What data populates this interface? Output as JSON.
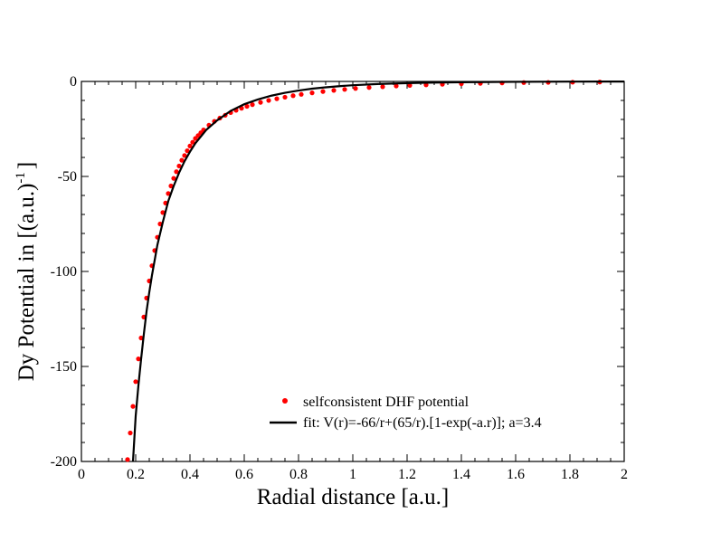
{
  "chart_data": {
    "type": "scatter+line",
    "xlabel": "Radial distance [a.u.]",
    "ylabel_main": "Dy Potential in [(a.u.)",
    "ylabel_sup": "-1",
    "ylabel_end": "]",
    "xlim": [
      0,
      2
    ],
    "ylim": [
      -200,
      0
    ],
    "x_ticks": [
      0,
      0.2,
      0.4,
      0.6,
      0.8,
      1,
      1.2,
      1.4,
      1.6,
      1.8,
      2
    ],
    "x_tick_labels": [
      "0",
      "0.2",
      "0.4",
      "0.6",
      "0.8",
      "1",
      "1.2",
      "1.4",
      "1.6",
      "1.8",
      "2"
    ],
    "y_ticks": [
      -200,
      -150,
      -100,
      -50,
      0
    ],
    "y_tick_labels": [
      "-200",
      "-150",
      "-100",
      "-50",
      "0"
    ],
    "grid": false,
    "legend_position": "bottom-right",
    "series": [
      {
        "name": "selfconsistent DHF potential",
        "kind": "scatter",
        "color": "#ff0000",
        "x": [
          0.17,
          0.18,
          0.19,
          0.2,
          0.21,
          0.22,
          0.23,
          0.24,
          0.25,
          0.26,
          0.27,
          0.28,
          0.29,
          0.3,
          0.31,
          0.32,
          0.33,
          0.34,
          0.35,
          0.36,
          0.37,
          0.38,
          0.39,
          0.4,
          0.41,
          0.42,
          0.43,
          0.44,
          0.45,
          0.47,
          0.49,
          0.51,
          0.53,
          0.55,
          0.57,
          0.59,
          0.61,
          0.63,
          0.66,
          0.69,
          0.72,
          0.75,
          0.78,
          0.81,
          0.85,
          0.89,
          0.93,
          0.97,
          1.01,
          1.06,
          1.11,
          1.16,
          1.21,
          1.27,
          1.33,
          1.4,
          1.47,
          1.55,
          1.63,
          1.72,
          1.81,
          1.91
        ],
        "y": [
          -199,
          -185,
          -171,
          -158,
          -146,
          -135,
          -124,
          -114,
          -105,
          -97,
          -89,
          -82,
          -75,
          -69,
          -64,
          -59,
          -55,
          -51,
          -47.5,
          -44.5,
          -41.5,
          -39,
          -36.5,
          -34,
          -32,
          -30,
          -28.5,
          -27,
          -25.5,
          -23,
          -21,
          -19.3,
          -17.8,
          -16.4,
          -15.2,
          -14.1,
          -13.1,
          -12.2,
          -11,
          -10,
          -9.1,
          -8.3,
          -7.5,
          -6.8,
          -6,
          -5.3,
          -4.7,
          -4.2,
          -3.7,
          -3.2,
          -2.8,
          -2.4,
          -2.1,
          -1.8,
          -1.5,
          -1.2,
          -1,
          -0.8,
          -0.6,
          -0.5,
          -0.4,
          -0.3
        ]
      },
      {
        "name": "fit: V(r)=-66/r+(65/r).[1-exp(-a.r)]; a=3.4",
        "kind": "line",
        "color": "#000000",
        "x": [
          0.19,
          0.2,
          0.21,
          0.22,
          0.23,
          0.24,
          0.25,
          0.26,
          0.27,
          0.28,
          0.29,
          0.3,
          0.32,
          0.34,
          0.36,
          0.38,
          0.4,
          0.42,
          0.44,
          0.46,
          0.48,
          0.5,
          0.55,
          0.6,
          0.65,
          0.7,
          0.75,
          0.8,
          0.85,
          0.9,
          0.95,
          1,
          1.1,
          1.2,
          1.3,
          1.4,
          1.5,
          1.6,
          1.7,
          1.8,
          1.9,
          2
        ],
        "y": [
          -200,
          -176,
          -160,
          -146,
          -133,
          -121,
          -111,
          -102,
          -94,
          -86,
          -80,
          -74,
          -63,
          -55,
          -48,
          -42,
          -37,
          -32.5,
          -29,
          -25.5,
          -23,
          -20.5,
          -15.5,
          -12,
          -9.5,
          -7.5,
          -6,
          -4.8,
          -3.8,
          -3.1,
          -2.5,
          -2,
          -1.3,
          -0.9,
          -0.6,
          -0.4,
          -0.3,
          -0.2,
          -0.15,
          -0.1,
          -0.07,
          -0.05
        ]
      }
    ]
  }
}
